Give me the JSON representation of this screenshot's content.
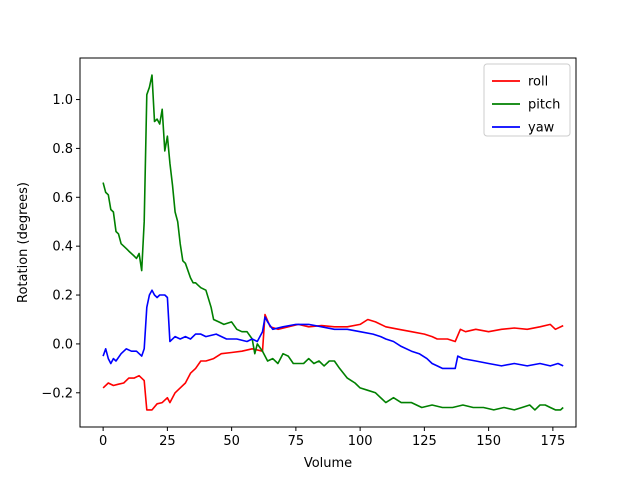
{
  "chart_data": {
    "type": "line",
    "title": "",
    "xlabel": "Volume",
    "ylabel": "Rotation (degrees)",
    "xlim": [
      -9,
      184
    ],
    "ylim": [
      -0.34,
      1.17
    ],
    "xticks": [
      0,
      25,
      50,
      75,
      100,
      125,
      150,
      175
    ],
    "yticks": [
      -0.2,
      0.0,
      0.2,
      0.4,
      0.6,
      0.8,
      1.0
    ],
    "ytick_labels": [
      "−0.2",
      "0.0",
      "0.2",
      "0.4",
      "0.6",
      "0.8",
      "1.0"
    ],
    "grid": false,
    "legend": "top-right",
    "series": [
      {
        "name": "roll",
        "color": "#ff0000",
        "points": [
          [
            0,
            -0.18
          ],
          [
            2,
            -0.16
          ],
          [
            4,
            -0.17
          ],
          [
            6,
            -0.165
          ],
          [
            8,
            -0.16
          ],
          [
            10,
            -0.14
          ],
          [
            12,
            -0.14
          ],
          [
            14,
            -0.13
          ],
          [
            16,
            -0.15
          ],
          [
            17,
            -0.27
          ],
          [
            19,
            -0.27
          ],
          [
            21,
            -0.245
          ],
          [
            23,
            -0.24
          ],
          [
            25,
            -0.22
          ],
          [
            26,
            -0.24
          ],
          [
            28,
            -0.2
          ],
          [
            30,
            -0.18
          ],
          [
            32,
            -0.16
          ],
          [
            34,
            -0.12
          ],
          [
            36,
            -0.1
          ],
          [
            38,
            -0.07
          ],
          [
            40,
            -0.07
          ],
          [
            43,
            -0.06
          ],
          [
            46,
            -0.04
          ],
          [
            50,
            -0.035
          ],
          [
            54,
            -0.03
          ],
          [
            58,
            -0.02
          ],
          [
            62,
            -0.03
          ],
          [
            63,
            0.12
          ],
          [
            65,
            0.07
          ],
          [
            68,
            0.06
          ],
          [
            72,
            0.07
          ],
          [
            76,
            0.08
          ],
          [
            80,
            0.07
          ],
          [
            85,
            0.075
          ],
          [
            90,
            0.07
          ],
          [
            95,
            0.07
          ],
          [
            100,
            0.08
          ],
          [
            103,
            0.1
          ],
          [
            106,
            0.09
          ],
          [
            110,
            0.07
          ],
          [
            115,
            0.06
          ],
          [
            120,
            0.05
          ],
          [
            125,
            0.04
          ],
          [
            128,
            0.03
          ],
          [
            130,
            0.02
          ],
          [
            134,
            0.02
          ],
          [
            137,
            0.01
          ],
          [
            139,
            0.06
          ],
          [
            141,
            0.05
          ],
          [
            145,
            0.06
          ],
          [
            150,
            0.05
          ],
          [
            155,
            0.06
          ],
          [
            160,
            0.065
          ],
          [
            165,
            0.06
          ],
          [
            170,
            0.07
          ],
          [
            174,
            0.08
          ],
          [
            176,
            0.06
          ],
          [
            179,
            0.075
          ]
        ]
      },
      {
        "name": "pitch",
        "color": "#008000",
        "points": [
          [
            0,
            0.66
          ],
          [
            1,
            0.62
          ],
          [
            2,
            0.61
          ],
          [
            3,
            0.55
          ],
          [
            4,
            0.54
          ],
          [
            5,
            0.46
          ],
          [
            6,
            0.45
          ],
          [
            7,
            0.41
          ],
          [
            9,
            0.39
          ],
          [
            10,
            0.38
          ],
          [
            12,
            0.36
          ],
          [
            13,
            0.35
          ],
          [
            14,
            0.37
          ],
          [
            15,
            0.3
          ],
          [
            16,
            0.5
          ],
          [
            17,
            1.02
          ],
          [
            18,
            1.05
          ],
          [
            19,
            1.1
          ],
          [
            20,
            0.91
          ],
          [
            21,
            0.92
          ],
          [
            22,
            0.9
          ],
          [
            23,
            0.96
          ],
          [
            24,
            0.79
          ],
          [
            25,
            0.85
          ],
          [
            26,
            0.74
          ],
          [
            27,
            0.65
          ],
          [
            28,
            0.54
          ],
          [
            29,
            0.5
          ],
          [
            30,
            0.41
          ],
          [
            31,
            0.34
          ],
          [
            32,
            0.33
          ],
          [
            34,
            0.27
          ],
          [
            35,
            0.25
          ],
          [
            36,
            0.25
          ],
          [
            37,
            0.24
          ],
          [
            38,
            0.23
          ],
          [
            40,
            0.22
          ],
          [
            42,
            0.15
          ],
          [
            43,
            0.1
          ],
          [
            45,
            0.09
          ],
          [
            47,
            0.08
          ],
          [
            50,
            0.09
          ],
          [
            52,
            0.06
          ],
          [
            54,
            0.05
          ],
          [
            56,
            0.05
          ],
          [
            58,
            0.02
          ],
          [
            59,
            -0.04
          ],
          [
            60,
            0.0
          ],
          [
            62,
            -0.03
          ],
          [
            64,
            -0.07
          ],
          [
            66,
            -0.06
          ],
          [
            68,
            -0.08
          ],
          [
            70,
            -0.04
          ],
          [
            72,
            -0.05
          ],
          [
            74,
            -0.08
          ],
          [
            76,
            -0.08
          ],
          [
            78,
            -0.08
          ],
          [
            80,
            -0.06
          ],
          [
            82,
            -0.08
          ],
          [
            84,
            -0.07
          ],
          [
            86,
            -0.09
          ],
          [
            88,
            -0.07
          ],
          [
            90,
            -0.07
          ],
          [
            92,
            -0.1
          ],
          [
            95,
            -0.14
          ],
          [
            98,
            -0.16
          ],
          [
            100,
            -0.18
          ],
          [
            103,
            -0.19
          ],
          [
            106,
            -0.2
          ],
          [
            110,
            -0.24
          ],
          [
            113,
            -0.22
          ],
          [
            116,
            -0.24
          ],
          [
            120,
            -0.24
          ],
          [
            124,
            -0.26
          ],
          [
            128,
            -0.25
          ],
          [
            132,
            -0.26
          ],
          [
            136,
            -0.26
          ],
          [
            140,
            -0.25
          ],
          [
            144,
            -0.26
          ],
          [
            148,
            -0.26
          ],
          [
            152,
            -0.27
          ],
          [
            156,
            -0.26
          ],
          [
            160,
            -0.27
          ],
          [
            163,
            -0.26
          ],
          [
            166,
            -0.25
          ],
          [
            168,
            -0.27
          ],
          [
            170,
            -0.25
          ],
          [
            172,
            -0.25
          ],
          [
            174,
            -0.26
          ],
          [
            176,
            -0.27
          ],
          [
            178,
            -0.27
          ],
          [
            179,
            -0.26
          ]
        ]
      },
      {
        "name": "yaw",
        "color": "#0000ff",
        "points": [
          [
            0,
            -0.05
          ],
          [
            1,
            -0.02
          ],
          [
            2,
            -0.06
          ],
          [
            3,
            -0.08
          ],
          [
            4,
            -0.06
          ],
          [
            5,
            -0.07
          ],
          [
            7,
            -0.04
          ],
          [
            9,
            -0.02
          ],
          [
            11,
            -0.03
          ],
          [
            13,
            -0.03
          ],
          [
            15,
            -0.05
          ],
          [
            16,
            -0.02
          ],
          [
            17,
            0.15
          ],
          [
            18,
            0.2
          ],
          [
            19,
            0.22
          ],
          [
            20,
            0.2
          ],
          [
            21,
            0.19
          ],
          [
            22,
            0.2
          ],
          [
            24,
            0.2
          ],
          [
            25,
            0.19
          ],
          [
            26,
            0.01
          ],
          [
            28,
            0.03
          ],
          [
            30,
            0.02
          ],
          [
            32,
            0.03
          ],
          [
            34,
            0.02
          ],
          [
            36,
            0.04
          ],
          [
            38,
            0.04
          ],
          [
            40,
            0.03
          ],
          [
            44,
            0.04
          ],
          [
            48,
            0.02
          ],
          [
            52,
            0.02
          ],
          [
            56,
            0.01
          ],
          [
            58,
            0.02
          ],
          [
            60,
            0.01
          ],
          [
            62,
            0.05
          ],
          [
            63,
            0.11
          ],
          [
            64,
            0.09
          ],
          [
            66,
            0.06
          ],
          [
            70,
            0.07
          ],
          [
            75,
            0.08
          ],
          [
            80,
            0.08
          ],
          [
            85,
            0.07
          ],
          [
            90,
            0.06
          ],
          [
            95,
            0.06
          ],
          [
            100,
            0.05
          ],
          [
            105,
            0.04
          ],
          [
            108,
            0.03
          ],
          [
            110,
            0.02
          ],
          [
            113,
            0.01
          ],
          [
            116,
            -0.01
          ],
          [
            120,
            -0.03
          ],
          [
            123,
            -0.04
          ],
          [
            126,
            -0.06
          ],
          [
            128,
            -0.08
          ],
          [
            130,
            -0.09
          ],
          [
            132,
            -0.1
          ],
          [
            135,
            -0.1
          ],
          [
            137,
            -0.1
          ],
          [
            138,
            -0.05
          ],
          [
            140,
            -0.06
          ],
          [
            145,
            -0.07
          ],
          [
            150,
            -0.08
          ],
          [
            155,
            -0.09
          ],
          [
            160,
            -0.08
          ],
          [
            165,
            -0.09
          ],
          [
            170,
            -0.08
          ],
          [
            174,
            -0.09
          ],
          [
            177,
            -0.08
          ],
          [
            179,
            -0.09
          ]
        ]
      }
    ]
  }
}
